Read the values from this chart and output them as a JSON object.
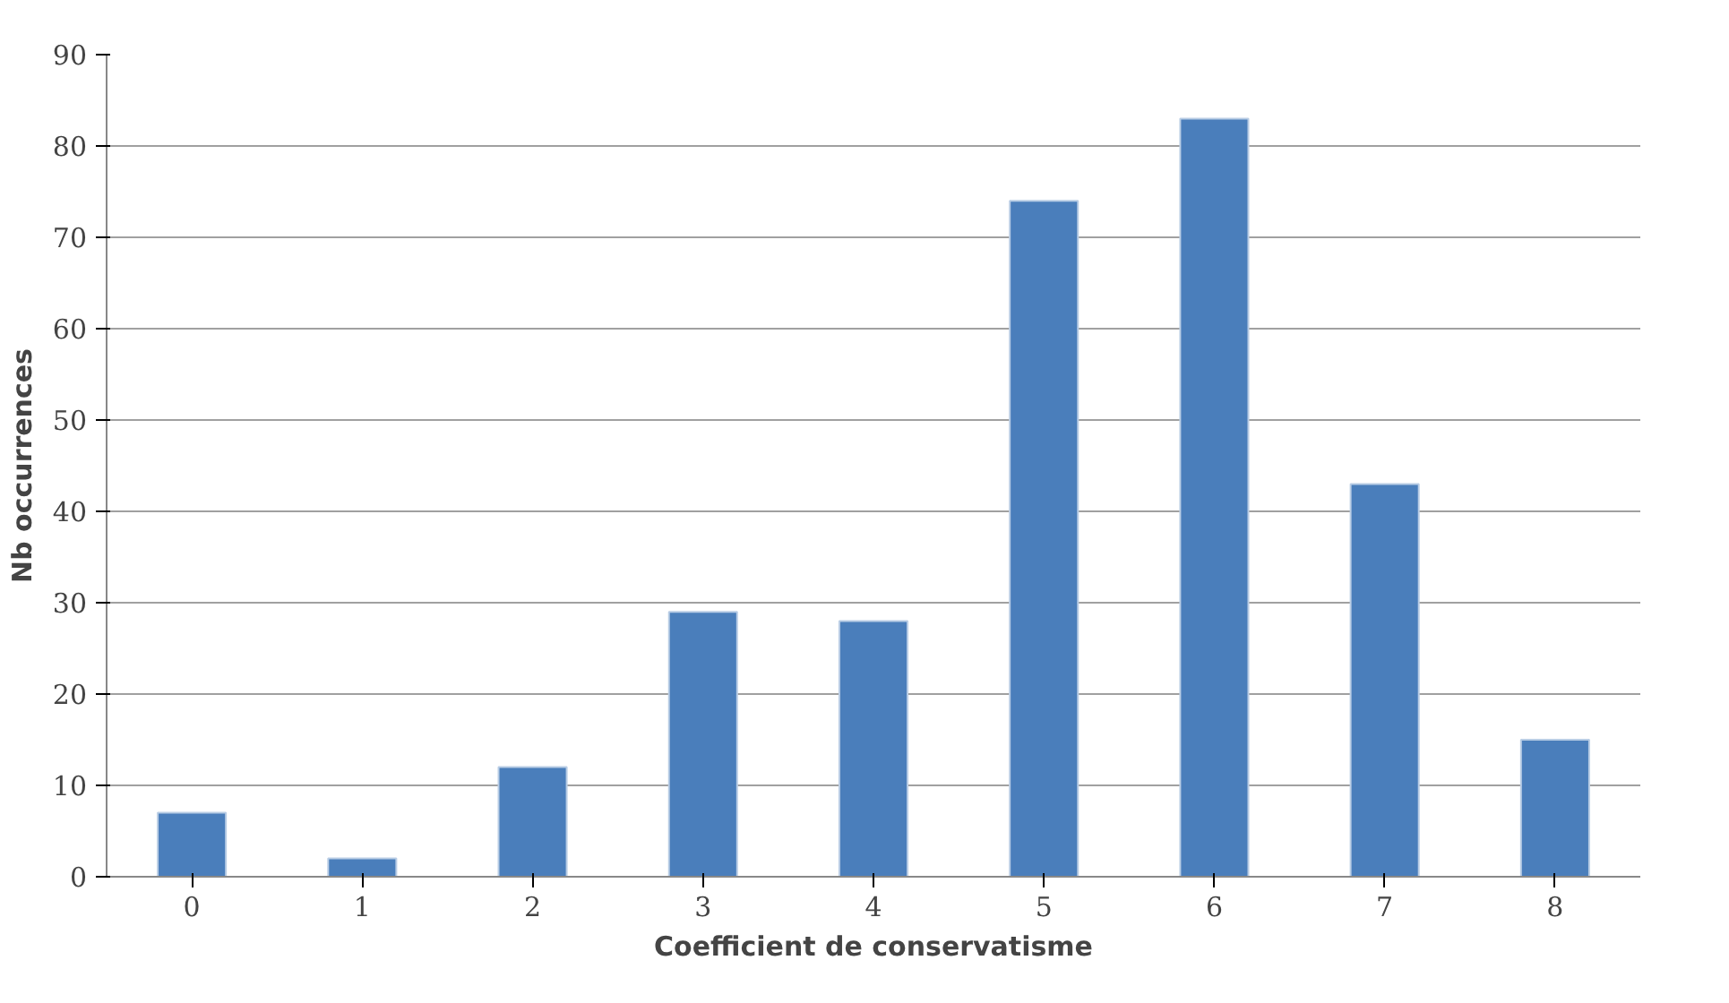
{
  "chart_data": {
    "type": "bar",
    "xlabel": "Coefficient de conservatisme",
    "ylabel": "Nb occurrences",
    "categories": [
      "0",
      "1",
      "2",
      "3",
      "4",
      "5",
      "6",
      "7",
      "8"
    ],
    "values": [
      7,
      2,
      12,
      29,
      28,
      74,
      83,
      43,
      15
    ],
    "color": "#4a7ebb",
    "ylim": [
      0,
      90
    ],
    "yticks": [
      0,
      10,
      20,
      30,
      40,
      50,
      60,
      70,
      80,
      90
    ],
    "grid": "y"
  }
}
